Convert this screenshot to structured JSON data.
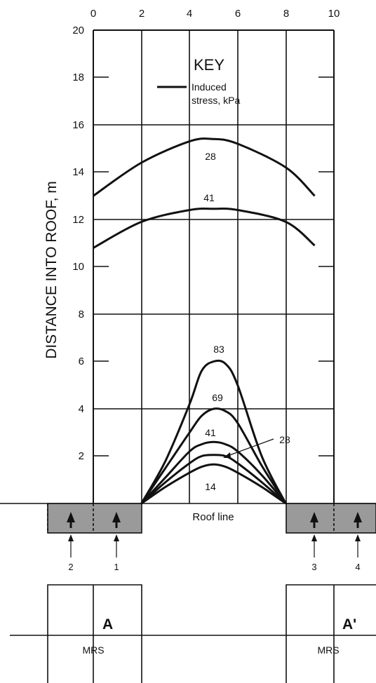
{
  "x_ticks": [
    "0",
    "2",
    "4",
    "6",
    "8",
    "10"
  ],
  "y_ticks": [
    "20",
    "18",
    "16",
    "14",
    "12",
    "10",
    "8",
    "6",
    "4",
    "2"
  ],
  "y_axis_label": "DISTANCE INTO ROOF, m",
  "key": {
    "title": "KEY",
    "line1": "Induced",
    "line2": "stress, kPa"
  },
  "contour_labels": {
    "upper_28": "28",
    "upper_41": "41",
    "c83": "83",
    "c69": "69",
    "c41": "41",
    "c28": "28",
    "c14": "14"
  },
  "roof_line_label": "Roof line",
  "pillar_numbers": [
    "2",
    "1",
    "3",
    "4"
  ],
  "sections": {
    "left": "A",
    "right": "A'"
  },
  "mrs_label": "MRS",
  "colors": {
    "line": "#111111",
    "pillar_fill": "#9a9a9a",
    "background": "#ffffff"
  },
  "chart_data": {
    "type": "line",
    "xlim": [
      0,
      10
    ],
    "ylim": [
      0,
      20
    ],
    "ylabel": "DISTANCE INTO ROOF, m",
    "series": [
      {
        "name": "28",
        "x": [
          0,
          2,
          4,
          5,
          6,
          8,
          9.2
        ],
        "y": [
          13.0,
          14.4,
          15.3,
          15.4,
          15.2,
          14.2,
          13.0
        ]
      },
      {
        "name": "41",
        "x": [
          0,
          2,
          4,
          5,
          6,
          8,
          9.2
        ],
        "y": [
          10.8,
          11.9,
          12.4,
          12.45,
          12.4,
          11.9,
          10.9
        ]
      },
      {
        "name": "83",
        "x": [
          2,
          3,
          4,
          4.5,
          5,
          5.5,
          6,
          7,
          8
        ],
        "y": [
          0,
          1.8,
          4.2,
          5.6,
          6.0,
          5.9,
          5.0,
          2.0,
          0
        ]
      },
      {
        "name": "69",
        "x": [
          2,
          3,
          4,
          4.5,
          5,
          5.5,
          6,
          7,
          8
        ],
        "y": [
          0,
          1.5,
          3.0,
          3.7,
          4.0,
          3.9,
          3.4,
          1.6,
          0
        ]
      },
      {
        "name": "41",
        "x": [
          2,
          3,
          4,
          4.5,
          5,
          5.5,
          6,
          7,
          8
        ],
        "y": [
          0,
          1.1,
          2.2,
          2.5,
          2.6,
          2.5,
          2.2,
          1.2,
          0
        ]
      },
      {
        "name": "28",
        "x": [
          2,
          3,
          4,
          4.5,
          5,
          5.5,
          6,
          7,
          8
        ],
        "y": [
          0,
          0.9,
          1.7,
          2.0,
          2.05,
          2.0,
          1.7,
          0.9,
          0
        ]
      },
      {
        "name": "14",
        "x": [
          2,
          3,
          4,
          4.5,
          5,
          5.5,
          6,
          7,
          8
        ],
        "y": [
          0,
          0.7,
          1.3,
          1.55,
          1.65,
          1.55,
          1.3,
          0.7,
          0
        ]
      }
    ]
  }
}
